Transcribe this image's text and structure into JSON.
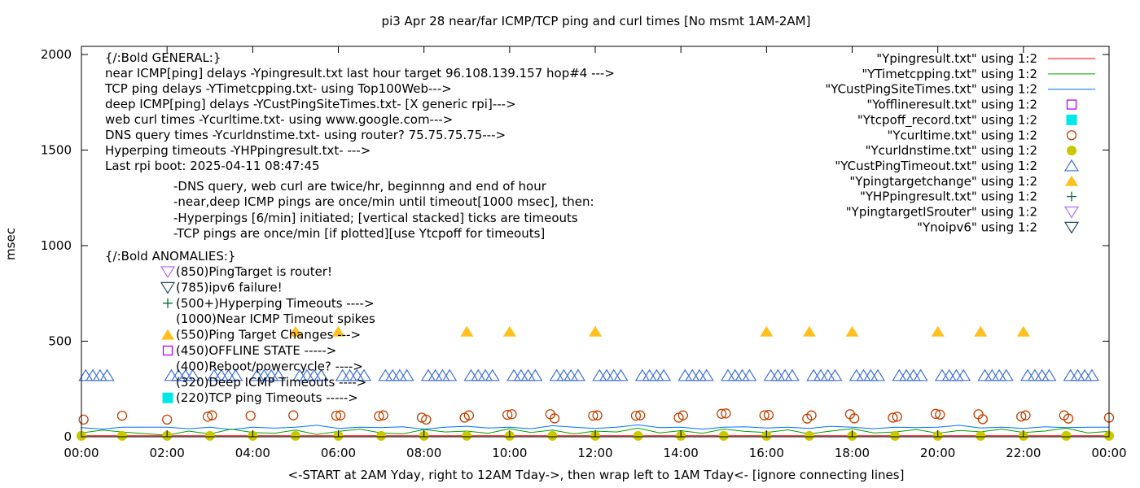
{
  "chart_data": {
    "type": "scatter",
    "title": "pi3 Apr 28  near/far ICMP/TCP ping and curl times [No msmt 1AM-2AM]",
    "xlabel": "<-START at 2AM Yday, right to 12AM Tday->, then wrap left to 1AM Tday<- [ignore connecting lines]",
    "ylabel": "msec",
    "xlim_hours": [
      0,
      24
    ],
    "ylim": [
      0,
      2050
    ],
    "x_ticks": [
      "00:00",
      "02:00",
      "04:00",
      "06:00",
      "08:00",
      "10:00",
      "12:00",
      "14:00",
      "16:00",
      "18:00",
      "20:00",
      "22:00",
      "00:00"
    ],
    "y_ticks": [
      "0",
      "500",
      "1000",
      "1500",
      "2000"
    ],
    "grid": false,
    "legend_position": "top-right",
    "general_notes": [
      "{/:Bold GENERAL:}",
      "near ICMP[ping] delays -Ypingresult.txt last hour target 96.108.139.157 hop#4 --->",
      "TCP ping delays -YTimetcpping.txt- using Top100Web--->",
      "deep ICMP[ping] delays -YCustPingSiteTimes.txt- [X generic rpi]--->",
      "web curl times -Ycurltime.txt- using www.google.com--->",
      "DNS query times -Ycurldnstime.txt- using router? 75.75.75.75--->",
      "Hyperping timeouts -YHPpingresult.txt- --->",
      "Last rpi boot: 2025-04-11 08:47:45"
    ],
    "sub_notes": [
      "-DNS query, web curl are twice/hr, beginnng and end of hour",
      "-near,deep ICMP pings are once/min until timeout[1000 msec], then:",
      "  -Hyperpings [6/min] initiated; [vertical stacked] ticks are timeouts",
      "-TCP pings are once/min [if plotted][use Ytcpoff for timeouts]"
    ],
    "anomalies_header": "{/:Bold ANOMALIES:}",
    "anomalies": [
      {
        "symbol": "triangle-down-open",
        "color": "#b070ff",
        "text": "(850)PingTarget is router!"
      },
      {
        "symbol": "triangle-down-open",
        "color": "#2a4a60",
        "text": "(785)ipv6 failure!"
      },
      {
        "symbol": "plus",
        "color": "#007030",
        "text": "(500+)Hyperping Timeouts ---->"
      },
      {
        "symbol": "none",
        "color": "",
        "text": "(1000)Near ICMP Timeout spikes"
      },
      {
        "symbol": "triangle-up-filled",
        "color": "#ffc020",
        "text": "(550)Ping Target Changes --->"
      },
      {
        "symbol": "square-open",
        "color": "#c000ff",
        "text": "(450)OFFLINE STATE ----->"
      },
      {
        "symbol": "none",
        "color": "",
        "text": "(400)Reboot/powercycle? ---->"
      },
      {
        "symbol": "none",
        "color": "",
        "text": "(320)Deep ICMP Timeouts ---->"
      },
      {
        "symbol": "square-filled",
        "color": "#00e8e8",
        "text": "(220)TCP ping Timeouts ----->"
      }
    ],
    "legend": [
      {
        "label": "\"Ypingresult.txt\" using 1:2",
        "symbol": "line",
        "color": "#ff0000"
      },
      {
        "label": "\"YTimetcpping.txt\" using 1:2",
        "symbol": "line",
        "color": "#00a000"
      },
      {
        "label": "\"YCustPingSiteTimes.txt\" using 1:2",
        "symbol": "line",
        "color": "#0070ff"
      },
      {
        "label": "\"Yofflineresult.txt\" using 1:2",
        "symbol": "square-open",
        "color": "#c000ff"
      },
      {
        "label": "\"Ytcpoff_record.txt\" using 1:2",
        "symbol": "square-filled",
        "color": "#00e8e8"
      },
      {
        "label": "\"Ycurltime.txt\" using 1:2",
        "symbol": "circle-open",
        "color": "#c04000"
      },
      {
        "label": "\"Ycurldnstime.txt\" using 1:2",
        "symbol": "circle-filled",
        "color": "#c8c800"
      },
      {
        "label": "\"YCustPingTimeout.txt\" using 1:2",
        "symbol": "triangle-up-open",
        "color": "#4070e0"
      },
      {
        "label": "\"Ypingtargetchange\" using 1:2",
        "symbol": "triangle-up-filled",
        "color": "#ffc020"
      },
      {
        "label": "\"YHPpingresult.txt\" using 1:2",
        "symbol": "plus",
        "color": "#007030"
      },
      {
        "label": "\"YpingtargetISrouter\" using 1:2",
        "symbol": "triangle-down-open",
        "color": "#b070ff"
      },
      {
        "label": "\"Ynoipv6\" using 1:2",
        "symbol": "triangle-down-open",
        "color": "#2a4a60"
      }
    ],
    "series": {
      "x_hours": [
        0,
        0.5,
        0.95,
        2,
        2.5,
        3,
        3.5,
        4,
        4.5,
        5,
        5.5,
        6,
        6.5,
        7,
        7.5,
        8,
        8.5,
        9,
        9.5,
        10,
        10.5,
        11,
        11.5,
        12,
        12.5,
        13,
        13.5,
        14,
        14.5,
        15,
        15.5,
        16,
        16.5,
        17,
        17.5,
        18,
        18.5,
        19,
        19.5,
        20,
        20.5,
        21,
        21.5,
        22,
        22.5,
        23,
        23.5,
        24
      ],
      "Ypingresult": [
        5,
        5,
        5,
        5,
        5,
        5,
        5,
        5,
        5,
        5,
        5,
        5,
        5,
        5,
        5,
        5,
        5,
        5,
        5,
        5,
        5,
        5,
        5,
        5,
        5,
        5,
        5,
        5,
        5,
        5,
        5,
        5,
        5,
        5,
        5,
        5,
        5,
        5,
        5,
        5,
        5,
        5,
        5,
        5,
        5,
        5,
        5,
        5
      ],
      "YTimetcpping": [
        20,
        35,
        25,
        8,
        30,
        15,
        40,
        22,
        18,
        35,
        12,
        28,
        40,
        20,
        15,
        38,
        25,
        30,
        18,
        42,
        22,
        35,
        15,
        30,
        25,
        45,
        20,
        32,
        18,
        40,
        28,
        22,
        36,
        15,
        30,
        42,
        20,
        25,
        38,
        18,
        33,
        26,
        40,
        22,
        30,
        45,
        20,
        28
      ],
      "YCustPingSiteTimes": [
        48,
        40,
        50,
        50,
        42,
        50,
        38,
        50,
        45,
        50,
        60,
        44,
        50,
        48,
        52,
        40,
        50,
        55,
        46,
        50,
        42,
        58,
        50,
        44,
        50,
        62,
        48,
        50,
        40,
        50,
        52,
        46,
        50,
        44,
        55,
        50,
        42,
        50,
        48,
        50,
        60,
        46,
        50,
        44,
        52,
        48,
        50,
        50
      ]
    },
    "Ycurltime": [
      [
        0.05,
        90
      ],
      [
        0.95,
        110
      ],
      [
        2.0,
        90
      ],
      [
        2.95,
        105
      ],
      [
        3.05,
        112
      ],
      [
        3.95,
        110
      ],
      [
        4.95,
        112
      ],
      [
        5.95,
        110
      ],
      [
        6.05,
        112
      ],
      [
        6.95,
        108
      ],
      [
        7.05,
        112
      ],
      [
        7.95,
        100
      ],
      [
        8.05,
        90
      ],
      [
        8.95,
        100
      ],
      [
        9.05,
        112
      ],
      [
        9.95,
        115
      ],
      [
        10.05,
        118
      ],
      [
        10.95,
        118
      ],
      [
        11.05,
        96
      ],
      [
        11.95,
        110
      ],
      [
        12.05,
        112
      ],
      [
        12.95,
        110
      ],
      [
        13.05,
        112
      ],
      [
        13.95,
        100
      ],
      [
        14.05,
        112
      ],
      [
        14.95,
        120
      ],
      [
        15.05,
        122
      ],
      [
        15.95,
        112
      ],
      [
        16.05,
        114
      ],
      [
        16.95,
        95
      ],
      [
        17.05,
        112
      ],
      [
        17.95,
        118
      ],
      [
        18.05,
        96
      ],
      [
        18.95,
        100
      ],
      [
        19.05,
        105
      ],
      [
        19.95,
        120
      ],
      [
        20.05,
        116
      ],
      [
        20.95,
        118
      ],
      [
        21.05,
        92
      ],
      [
        21.95,
        106
      ],
      [
        22.05,
        112
      ],
      [
        22.95,
        112
      ],
      [
        23.05,
        95
      ],
      [
        24,
        100
      ]
    ],
    "Ycurldnstime_hours": [
      0,
      0.95,
      2,
      3,
      4,
      5,
      6,
      7,
      8,
      9,
      10,
      11,
      12,
      13,
      14,
      15,
      16,
      17,
      18,
      19,
      20,
      21,
      22,
      23,
      24
    ],
    "Ycurldnstime_value": 5,
    "YCustPingTimeout": {
      "value": 320,
      "hours": [
        0,
        2,
        3,
        4,
        5,
        6,
        7,
        8,
        9,
        10,
        11,
        12,
        13,
        14,
        15,
        16,
        17,
        18,
        19,
        20,
        21,
        22,
        23
      ],
      "minute_offsets": [
        6,
        16,
        26,
        36
      ]
    },
    "Ypingtargetchange": {
      "value": 550,
      "hours": [
        5,
        6,
        9,
        10,
        12,
        16,
        17,
        18,
        20,
        21,
        22
      ]
    }
  }
}
